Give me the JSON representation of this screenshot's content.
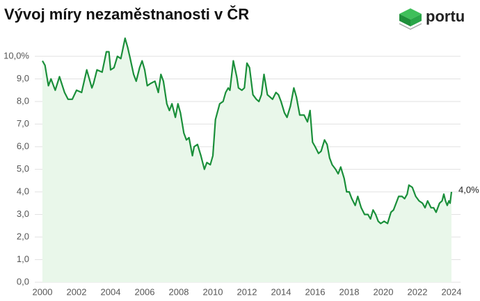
{
  "logo": "portu",
  "chart_data": {
    "type": "line",
    "title": "Vývoj míry nezaměstnanosti v ČR",
    "color": "#1a8f3a",
    "fill": "#e9f7ea",
    "grid": true,
    "x": [
      2000.0,
      2000.15,
      2000.35,
      2000.5,
      2000.75,
      2001.0,
      2001.3,
      2001.5,
      2001.75,
      2002.0,
      2002.3,
      2002.6,
      2002.9,
      2003.0,
      2003.2,
      2003.5,
      2003.75,
      2003.9,
      2004.0,
      2004.2,
      2004.4,
      2004.6,
      2004.85,
      2005.0,
      2005.15,
      2005.35,
      2005.5,
      2005.7,
      2005.85,
      2006.0,
      2006.15,
      2006.35,
      2006.6,
      2006.8,
      2006.95,
      2007.1,
      2007.3,
      2007.45,
      2007.6,
      2007.8,
      2007.95,
      2008.1,
      2008.3,
      2008.45,
      2008.6,
      2008.8,
      2008.9,
      2009.1,
      2009.3,
      2009.5,
      2009.65,
      2009.85,
      2010.0,
      2010.15,
      2010.4,
      2010.6,
      2010.75,
      2010.9,
      2011.0,
      2011.2,
      2011.4,
      2011.5,
      2011.7,
      2011.85,
      2012.0,
      2012.15,
      2012.35,
      2012.55,
      2012.7,
      2012.85,
      2013.0,
      2013.2,
      2013.35,
      2013.5,
      2013.7,
      2013.85,
      2014.0,
      2014.2,
      2014.35,
      2014.55,
      2014.75,
      2014.9,
      2015.1,
      2015.35,
      2015.55,
      2015.7,
      2015.85,
      2016.0,
      2016.2,
      2016.35,
      2016.55,
      2016.7,
      2016.85,
      2017.0,
      2017.2,
      2017.35,
      2017.5,
      2017.7,
      2017.85,
      2018.0,
      2018.15,
      2018.35,
      2018.5,
      2018.7,
      2018.9,
      2019.1,
      2019.25,
      2019.4,
      2019.55,
      2019.7,
      2019.85,
      2020.05,
      2020.25,
      2020.45,
      2020.6,
      2020.75,
      2020.9,
      2021.1,
      2021.25,
      2021.4,
      2021.5,
      2021.7,
      2021.9,
      2022.1,
      2022.3,
      2022.45,
      2022.6,
      2022.8,
      2022.95,
      2023.1,
      2023.3,
      2023.45,
      2023.55,
      2023.65,
      2023.75,
      2023.85,
      2023.92,
      2024.0
    ],
    "values": [
      9.8,
      9.6,
      8.7,
      9.0,
      8.5,
      9.1,
      8.4,
      8.1,
      8.1,
      8.5,
      8.4,
      9.4,
      8.6,
      8.8,
      9.4,
      9.3,
      10.2,
      10.2,
      9.4,
      9.5,
      10.0,
      9.9,
      10.8,
      10.4,
      9.9,
      9.2,
      8.9,
      9.5,
      9.8,
      9.4,
      8.7,
      8.8,
      8.9,
      8.4,
      9.2,
      8.9,
      7.9,
      7.6,
      7.9,
      7.3,
      7.9,
      7.5,
      6.6,
      6.3,
      6.4,
      5.6,
      6.0,
      6.1,
      5.6,
      5.0,
      5.3,
      5.2,
      5.6,
      7.2,
      7.9,
      8.0,
      8.4,
      8.6,
      8.5,
      9.8,
      9.1,
      8.6,
      8.5,
      8.6,
      9.7,
      9.5,
      8.3,
      8.1,
      8.0,
      8.3,
      9.2,
      8.3,
      8.2,
      8.1,
      8.4,
      8.3,
      8.0,
      7.5,
      7.3,
      7.8,
      8.6,
      8.2,
      7.4,
      7.4,
      7.1,
      7.6,
      6.2,
      6.0,
      5.7,
      5.8,
      6.3,
      6.1,
      5.5,
      5.2,
      5.0,
      4.8,
      5.1,
      4.6,
      4.0,
      4.0,
      3.7,
      3.4,
      3.8,
      3.3,
      3.0,
      3.0,
      2.8,
      3.2,
      3.0,
      2.7,
      2.6,
      2.7,
      2.6,
      3.1,
      3.2,
      3.5,
      3.8,
      3.8,
      3.7,
      3.9,
      4.3,
      4.2,
      3.8,
      3.6,
      3.5,
      3.3,
      3.6,
      3.3,
      3.3,
      3.1,
      3.5,
      3.6,
      3.9,
      3.6,
      3.4,
      3.6,
      3.5,
      4.0
    ],
    "value_labels": [
      null,
      null,
      null,
      null,
      null,
      null,
      null,
      null,
      null,
      null,
      null,
      null,
      null,
      null,
      null,
      null,
      null,
      null,
      null,
      null,
      null,
      null,
      null,
      null,
      null,
      null,
      null,
      null,
      null,
      null,
      null,
      null,
      null,
      null,
      null,
      null,
      null,
      null,
      null,
      null,
      null,
      null,
      null,
      null,
      null,
      null,
      null,
      null,
      null,
      null,
      null,
      null,
      null,
      null,
      null,
      null,
      null,
      null,
      null,
      null,
      null,
      null,
      null,
      null,
      null,
      null,
      null,
      null,
      null,
      null,
      null,
      null,
      null,
      null,
      null,
      null,
      null,
      null,
      null,
      null,
      null,
      null,
      null,
      null,
      null,
      null,
      null,
      null,
      null,
      null,
      null,
      null,
      null,
      null,
      null,
      null,
      null,
      null,
      null,
      null,
      null,
      null,
      null,
      null,
      null,
      null,
      null,
      null,
      null,
      null,
      null,
      null,
      null,
      null,
      null,
      null,
      null,
      null,
      null,
      null,
      null,
      null,
      null,
      null,
      null,
      null,
      null,
      null,
      null,
      null,
      null,
      null,
      null,
      null,
      null,
      null,
      null,
      "4,0%"
    ],
    "xlim": [
      2000,
      2024
    ],
    "xticks": [
      2000,
      2002,
      2004,
      2006,
      2008,
      2010,
      2012,
      2014,
      2016,
      2018,
      2020,
      2022,
      2024
    ],
    "ylim": [
      0,
      10
    ],
    "yticks": [
      {
        "value": 0,
        "label": "0,0"
      },
      {
        "value": 1,
        "label": "1,0"
      },
      {
        "value": 2,
        "label": "2,0"
      },
      {
        "value": 3,
        "label": "3,0"
      },
      {
        "value": 4,
        "label": "4,0"
      },
      {
        "value": 5,
        "label": "5,0"
      },
      {
        "value": 6,
        "label": "6,0"
      },
      {
        "value": 7,
        "label": "7,0"
      },
      {
        "value": 8,
        "label": "8,0"
      },
      {
        "value": 9,
        "label": "9,0"
      },
      {
        "value": 10,
        "label": "10,0%"
      }
    ]
  }
}
